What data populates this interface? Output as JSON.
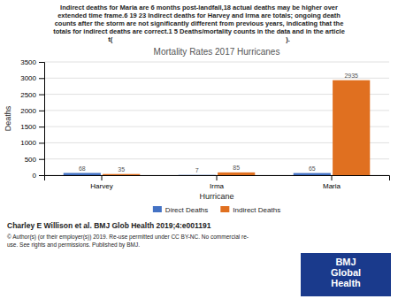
{
  "chart_data": {
    "type": "bar",
    "title": "Mortality Rates 2017 Hurricanes",
    "subtitle": [
      "Indirect deaths for Maria are 6 months post-landfall,18 actual deaths may be higher over",
      "extended time frame.6 19 23 Indirect deaths for Harvey and Irma are totals; ongoing death",
      "counts after the storm are not significantly different from previous years, indicating that the",
      "totals for indirect deaths are correct.1 5 Deaths/mortality counts in the data and in the article",
      "t(                                                                                              )."
    ],
    "xlabel": "Hurricane",
    "ylabel": "Deaths",
    "categories": [
      "Harvey",
      "Irma",
      "Maria"
    ],
    "series": [
      {
        "name": "Direct Deaths",
        "color": "#4472c4",
        "values": [
          68,
          7,
          65
        ]
      },
      {
        "name": "Indirect Deaths",
        "color": "#e07020",
        "values": [
          35,
          85,
          2935
        ]
      }
    ],
    "ylim": [
      0,
      3500
    ],
    "yticks": [
      0,
      500,
      1000,
      1500,
      2000,
      2500,
      3000,
      3500
    ],
    "grid": true,
    "data_labels": true,
    "legend": "bottom",
    "annotations": [
      "Charley E Willison et al. BMJ Glob Health 2019;4:e001191",
      "© Author(s) (or their employer(s)) 2019. Re-use permitted under CC BY-NC. No commercial re-",
      "use. See rights and permissions. Published by BMJ.",
      "BMJ",
      "Global",
      "Health"
    ]
  }
}
